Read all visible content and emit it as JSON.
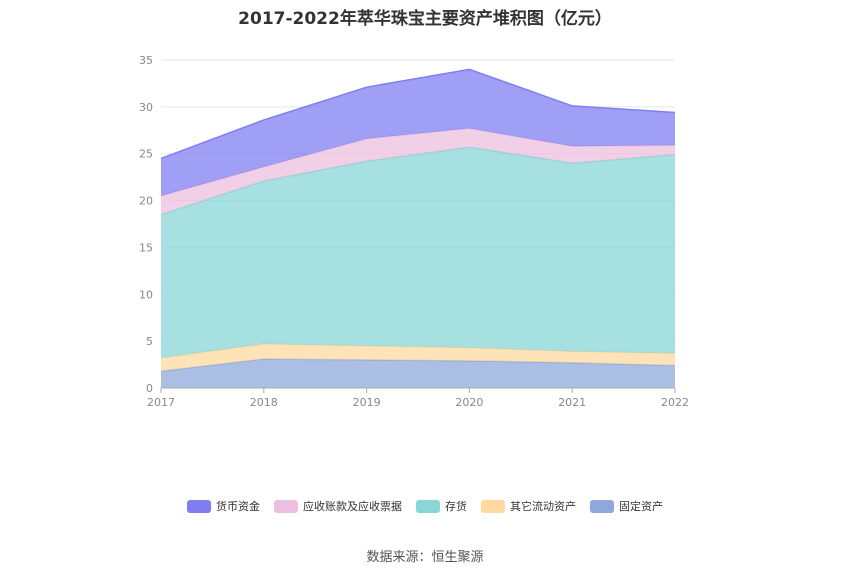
{
  "chart_data": {
    "type": "area",
    "stacked": true,
    "title": "2017-2022年萃华珠宝主要资产堆积图（亿元）",
    "x": [
      "2017",
      "2018",
      "2019",
      "2020",
      "2021",
      "2022"
    ],
    "ylim": [
      0,
      35
    ],
    "yticks": [
      0,
      5,
      10,
      15,
      20,
      25,
      30,
      35
    ],
    "grid": true,
    "legend_position": "bottom",
    "series": [
      {
        "name": "固定资产",
        "color": "#8fa9dc",
        "values": [
          1.8,
          3.1,
          3.0,
          2.9,
          2.7,
          2.4
        ]
      },
      {
        "name": "其它流动资产",
        "color": "#ffd9a0",
        "values": [
          1.4,
          1.6,
          1.5,
          1.4,
          1.2,
          1.3
        ]
      },
      {
        "name": "存货",
        "color": "#88d6d6",
        "values": [
          15.3,
          17.4,
          19.7,
          21.4,
          20.1,
          21.2
        ]
      },
      {
        "name": "应收账款及应收票据",
        "color": "#ecbfdf",
        "values": [
          2.0,
          1.5,
          2.4,
          2.0,
          1.8,
          1.0
        ]
      },
      {
        "name": "货币资金",
        "color": "#7f7ff2",
        "values": [
          4.0,
          5.0,
          5.5,
          6.3,
          4.3,
          3.5
        ]
      }
    ]
  },
  "legend_order": [
    {
      "name": "货币资金",
      "color": "#7f7ff2"
    },
    {
      "name": "应收账款及应收票据",
      "color": "#ecbfdf"
    },
    {
      "name": "存货",
      "color": "#88d6d6"
    },
    {
      "name": "其它流动资产",
      "color": "#ffd9a0"
    },
    {
      "name": "固定资产",
      "color": "#8fa9dc"
    }
  ],
  "source": "数据来源：恒生聚源"
}
